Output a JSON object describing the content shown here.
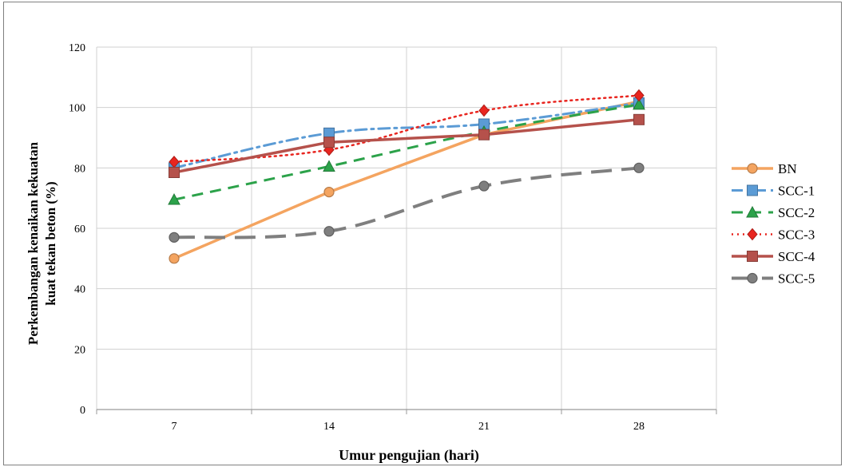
{
  "chart_data": {
    "type": "line",
    "categories": [
      "7",
      "14",
      "21",
      "28"
    ],
    "ylim": [
      0,
      120
    ],
    "yticks": [
      "0",
      "20",
      "40",
      "60",
      "80",
      "100",
      "120"
    ],
    "xlabel": "Umur pengujian (hari)",
    "ylabel_line1": "Perkembangan kenaikan kekuatan",
    "ylabel_line2": "kuat tekan beton (%)",
    "grid": true,
    "legend_position": "right",
    "series": [
      {
        "name": "BN",
        "values": [
          50,
          72,
          91,
          102
        ],
        "color": "#f4a460",
        "dash": "solid",
        "marker": "circle",
        "smooth": false,
        "width": 3.5
      },
      {
        "name": "SCC-1",
        "values": [
          80,
          91.5,
          94.5,
          101.5
        ],
        "color": "#5b9bd5",
        "dash": "dashdot",
        "marker": "square",
        "smooth": true,
        "width": 3
      },
      {
        "name": "SCC-2",
        "values": [
          69.5,
          80.5,
          92,
          101
        ],
        "color": "#2ca24a",
        "dash": "dash",
        "marker": "triangle",
        "smooth": true,
        "width": 3
      },
      {
        "name": "SCC-3",
        "values": [
          82,
          86,
          99,
          104
        ],
        "color": "#e8251f",
        "dash": "dot",
        "marker": "diamond",
        "smooth": true,
        "width": 2.5
      },
      {
        "name": "SCC-4",
        "values": [
          78.5,
          88.5,
          91,
          96
        ],
        "color": "#b5514b",
        "dash": "solid",
        "marker": "square",
        "smooth": false,
        "width": 3.5
      },
      {
        "name": "SCC-5",
        "values": [
          57,
          59,
          74,
          80
        ],
        "color": "#7f7f7f",
        "dash": "longdash",
        "marker": "circle",
        "smooth": true,
        "width": 4
      }
    ]
  }
}
